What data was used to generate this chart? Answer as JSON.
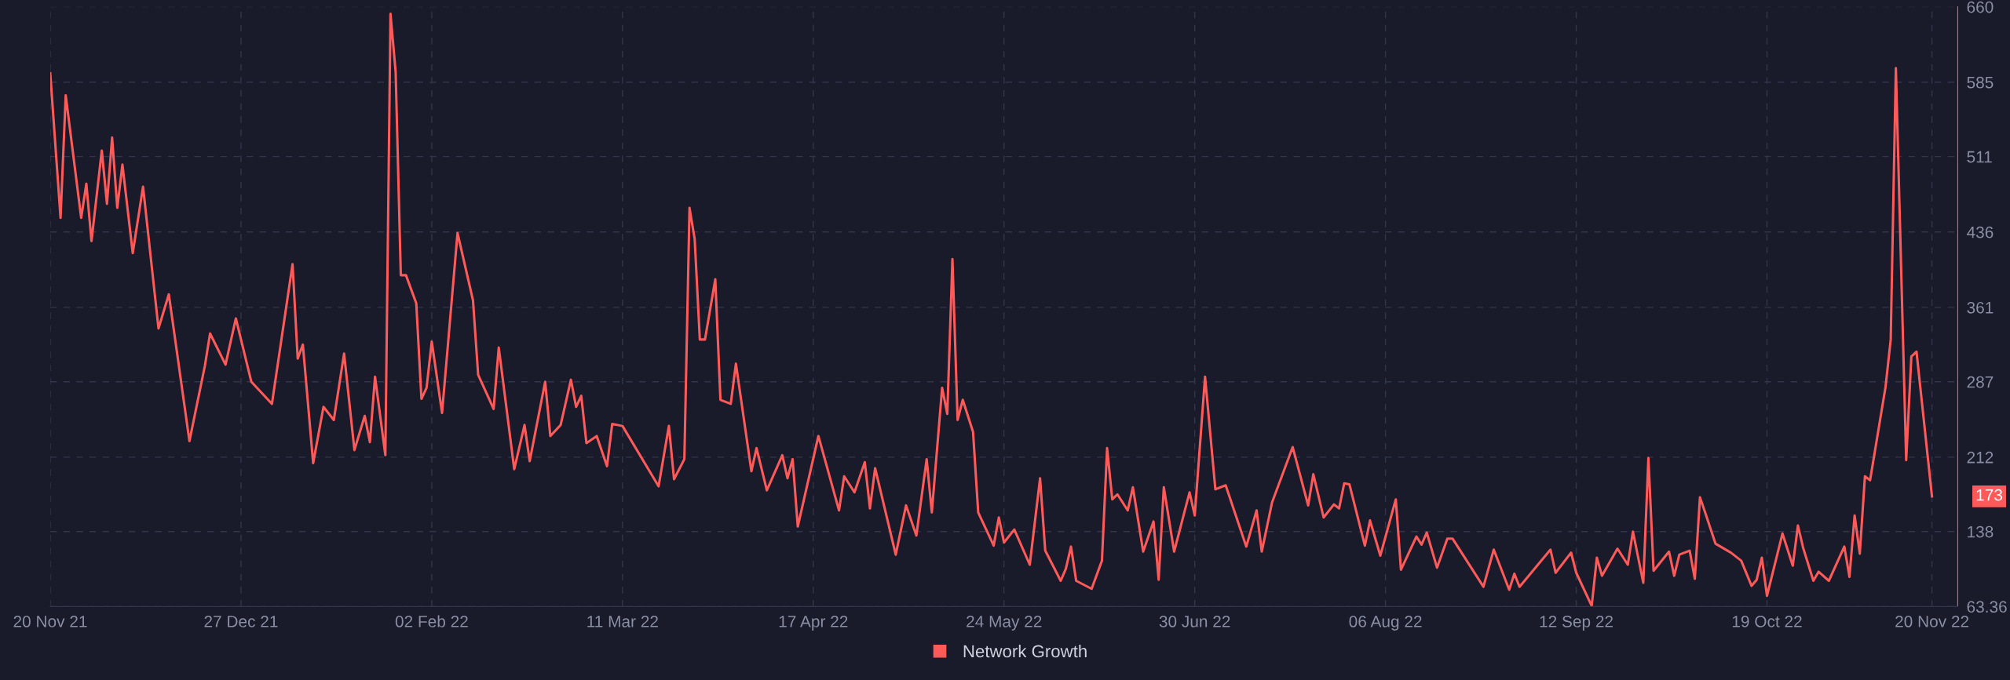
{
  "chart_data": {
    "type": "line",
    "x": [
      "2021-11-20",
      "2021-11-22",
      "2021-11-23",
      "2021-11-26",
      "2021-11-27",
      "2021-11-28",
      "2021-11-30",
      "2021-12-01",
      "2021-12-02",
      "2021-12-03",
      "2021-12-04",
      "2021-12-06",
      "2021-12-08",
      "2021-12-11",
      "2021-12-13",
      "2021-12-17",
      "2021-12-20",
      "2021-12-21",
      "2021-12-24",
      "2021-12-26",
      "2021-12-29",
      "2022-01-02",
      "2022-01-06",
      "2022-01-07",
      "2022-01-08",
      "2022-01-10",
      "2022-01-12",
      "2022-01-14",
      "2022-01-16",
      "2022-01-18",
      "2022-01-20",
      "2022-01-21",
      "2022-01-22",
      "2022-01-24",
      "2022-01-25",
      "2022-01-26",
      "2022-01-27",
      "2022-01-28",
      "2022-01-30",
      "2022-01-31",
      "2022-02-01",
      "2022-02-02",
      "2022-02-04",
      "2022-02-07",
      "2022-02-10",
      "2022-02-11",
      "2022-02-14",
      "2022-02-15",
      "2022-02-18",
      "2022-02-20",
      "2022-02-21",
      "2022-02-24",
      "2022-02-25",
      "2022-02-27",
      "2022-03-01",
      "2022-03-02",
      "2022-03-03",
      "2022-03-04",
      "2022-03-06",
      "2022-03-08",
      "2022-03-09",
      "2022-03-11",
      "2022-03-18",
      "2022-03-20",
      "2022-03-21",
      "2022-03-23",
      "2022-03-24",
      "2022-03-25",
      "2022-03-26",
      "2022-03-27",
      "2022-03-29",
      "2022-03-30",
      "2022-04-01",
      "2022-04-02",
      "2022-04-05",
      "2022-04-06",
      "2022-04-08",
      "2022-04-11",
      "2022-04-12",
      "2022-04-13",
      "2022-04-14",
      "2022-04-18",
      "2022-04-22",
      "2022-04-23",
      "2022-04-25",
      "2022-04-27",
      "2022-04-28",
      "2022-04-29",
      "2022-05-03",
      "2022-05-05",
      "2022-05-07",
      "2022-05-09",
      "2022-05-10",
      "2022-05-12",
      "2022-05-13",
      "2022-05-14",
      "2022-05-15",
      "2022-05-16",
      "2022-05-18",
      "2022-05-19",
      "2022-05-22",
      "2022-05-23",
      "2022-05-24",
      "2022-05-26",
      "2022-05-29",
      "2022-05-31",
      "2022-06-01",
      "2022-06-04",
      "2022-06-05",
      "2022-06-06",
      "2022-06-07",
      "2022-06-10",
      "2022-06-12",
      "2022-06-13",
      "2022-06-14",
      "2022-06-15",
      "2022-06-17",
      "2022-06-18",
      "2022-06-20",
      "2022-06-22",
      "2022-06-23",
      "2022-06-24",
      "2022-06-26",
      "2022-06-29",
      "2022-06-30",
      "2022-07-02",
      "2022-07-04",
      "2022-07-06",
      "2022-07-10",
      "2022-07-12",
      "2022-07-13",
      "2022-07-15",
      "2022-07-19",
      "2022-07-22",
      "2022-07-23",
      "2022-07-25",
      "2022-07-27",
      "2022-07-28",
      "2022-07-29",
      "2022-07-30",
      "2022-08-02",
      "2022-08-03",
      "2022-08-05",
      "2022-08-08",
      "2022-08-09",
      "2022-08-12",
      "2022-08-13",
      "2022-08-14",
      "2022-08-16",
      "2022-08-18",
      "2022-08-19",
      "2022-08-25",
      "2022-08-27",
      "2022-08-30",
      "2022-08-31",
      "2022-09-01",
      "2022-09-07",
      "2022-09-08",
      "2022-09-11",
      "2022-09-12",
      "2022-09-15",
      "2022-09-16",
      "2022-09-17",
      "2022-09-20",
      "2022-09-22",
      "2022-09-23",
      "2022-09-25",
      "2022-09-26",
      "2022-09-27",
      "2022-09-30",
      "2022-10-01",
      "2022-10-02",
      "2022-10-04",
      "2022-10-05",
      "2022-10-06",
      "2022-10-07",
      "2022-10-09",
      "2022-10-12",
      "2022-10-14",
      "2022-10-16",
      "2022-10-17",
      "2022-10-18",
      "2022-10-19",
      "2022-10-22",
      "2022-10-24",
      "2022-10-25",
      "2022-10-26",
      "2022-10-28",
      "2022-10-29",
      "2022-10-31",
      "2022-11-03",
      "2022-11-04",
      "2022-11-05",
      "2022-11-06",
      "2022-11-07",
      "2022-11-08",
      "2022-11-11",
      "2022-11-12",
      "2022-11-13",
      "2022-11-15",
      "2022-11-16",
      "2022-11-17",
      "2022-11-20"
    ],
    "series": [
      {
        "name": "Network Growth",
        "color": "#ff5a5a",
        "values": [
          594,
          450,
          572,
          450,
          484,
          427,
          517,
          464,
          530,
          460,
          503,
          415,
          481,
          340,
          374,
          228,
          303,
          335,
          304,
          350,
          287,
          265,
          404,
          310,
          324,
          206,
          262,
          249,
          315,
          219,
          253,
          227,
          292,
          214,
          653,
          595,
          393,
          393,
          365,
          270,
          281,
          327,
          256,
          435,
          368,
          294,
          260,
          321,
          200,
          244,
          208,
          287,
          233,
          244,
          289,
          262,
          273,
          226,
          233,
          203,
          245,
          243,
          183,
          243,
          190,
          210,
          460,
          429,
          329,
          329,
          389,
          269,
          265,
          305,
          198,
          221,
          179,
          214,
          191,
          210,
          143,
          233,
          159,
          193,
          177,
          207,
          161,
          201,
          115,
          164,
          134,
          210,
          157,
          281,
          255,
          409,
          249,
          269,
          237,
          157,
          124,
          152,
          127,
          140,
          105,
          191,
          119,
          89,
          101,
          123,
          89,
          81,
          109,
          221,
          170,
          175,
          159,
          182,
          118,
          148,
          90,
          182,
          118,
          177,
          154,
          292,
          180,
          184,
          123,
          159,
          118,
          167,
          222,
          164,
          195,
          152,
          165,
          161,
          186,
          185,
          124,
          149,
          114,
          170,
          100,
          133,
          125,
          137,
          102,
          131,
          131,
          83,
          120,
          80,
          96,
          83,
          120,
          97,
          117,
          97,
          64,
          112,
          94,
          121,
          105,
          138,
          87,
          211,
          99,
          118,
          94,
          115,
          119,
          91,
          172,
          157,
          126,
          117,
          109,
          84,
          90,
          112,
          74,
          136,
          104,
          144,
          122,
          89,
          98,
          89,
          123,
          93,
          154,
          116,
          193,
          189,
          282,
          329,
          599,
          209,
          312,
          317,
          173
        ]
      }
    ],
    "xlim": [
      "2021-11-20",
      "2022-11-25"
    ],
    "xticks": [
      {
        "value": "2021-11-20",
        "label": "20 Nov 21"
      },
      {
        "value": "2021-12-27",
        "label": "27 Dec 21"
      },
      {
        "value": "2022-02-02",
        "label": "02 Feb 22"
      },
      {
        "value": "2022-03-11",
        "label": "11 Mar 22"
      },
      {
        "value": "2022-04-17",
        "label": "17 Apr 22"
      },
      {
        "value": "2022-05-24",
        "label": "24 May 22"
      },
      {
        "value": "2022-06-30",
        "label": "30 Jun 22"
      },
      {
        "value": "2022-08-06",
        "label": "06 Aug 22"
      },
      {
        "value": "2022-09-12",
        "label": "12 Sep 22"
      },
      {
        "value": "2022-10-19",
        "label": "19 Oct 22"
      },
      {
        "value": "2022-11-20",
        "label": "20 Nov 22"
      }
    ],
    "ylim": [
      63.36,
      660
    ],
    "yticks": [
      63.36,
      138,
      212,
      287,
      361,
      436,
      511,
      585,
      660
    ],
    "grid": true,
    "legend": "bottom",
    "annotations": [
      {
        "text": "173",
        "x": "2022-11-20",
        "y": 173
      }
    ]
  }
}
